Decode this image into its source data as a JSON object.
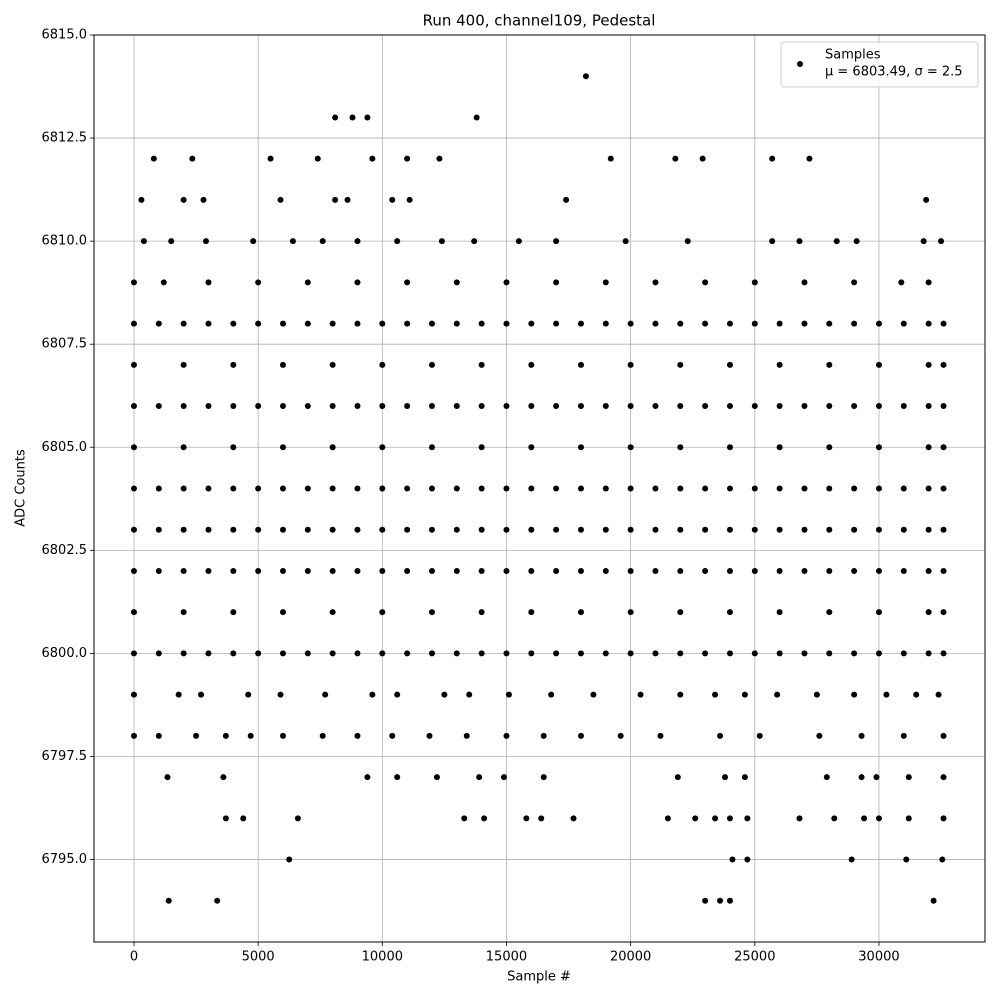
{
  "chart_data": {
    "type": "scatter",
    "title": "Run 400, channel109, Pedestal",
    "x_label": "Sample #",
    "y_label": "ADC Counts",
    "legend_note": "μ = 6803.49, σ = 2.5",
    "legend": "upper right",
    "grid": true,
    "xlim": [
      -1610,
      34270
    ],
    "ylim": [
      6793,
      6815
    ],
    "xticks": [
      0,
      5000,
      10000,
      15000,
      20000,
      25000,
      30000
    ],
    "yticks": [
      {
        "value": 6795,
        "label": "6795.0"
      },
      {
        "value": 6797.5,
        "label": "6797.5"
      },
      {
        "value": 6800,
        "label": "6800.0"
      },
      {
        "value": 6802.5,
        "label": "6802.5"
      },
      {
        "value": 6805,
        "label": "6805.0"
      },
      {
        "value": 6807.5,
        "label": "6807.5"
      },
      {
        "value": 6810,
        "label": "6810.0"
      },
      {
        "value": 6812.5,
        "label": "6812.5"
      },
      {
        "value": 6815,
        "label": "6815.0"
      }
    ],
    "x": [
      0,
      1000,
      2000,
      3000,
      4000,
      5000,
      6000,
      7000,
      8000,
      9000,
      10000,
      11000,
      12000,
      13000,
      14000,
      15000,
      16000,
      17000,
      18000,
      19000,
      20000,
      21000,
      22000,
      23000,
      24000,
      25000,
      26000,
      27000,
      28000,
      29000,
      30000,
      31000,
      32000,
      32600,
      0,
      1000,
      2000,
      3000,
      4000,
      5000,
      6000,
      7000,
      8000,
      9000,
      10000,
      11000,
      12000,
      13000,
      14000,
      15000,
      16000,
      17000,
      18000,
      19000,
      20000,
      21000,
      22000,
      23000,
      24000,
      25000,
      26000,
      27000,
      28000,
      29000,
      30000,
      31000,
      32000,
      32600,
      0,
      1000,
      2000,
      3000,
      4000,
      5000,
      6000,
      7000,
      8000,
      9000,
      10000,
      11000,
      12000,
      13000,
      14000,
      15000,
      16000,
      17000,
      18000,
      19000,
      20000,
      21000,
      22000,
      23000,
      24000,
      25000,
      26000,
      27000,
      28000,
      29000,
      30000,
      31000,
      32000,
      32600,
      0,
      1000,
      2000,
      3000,
      4000,
      5000,
      6000,
      7000,
      8000,
      9000,
      10000,
      11000,
      12000,
      13000,
      14000,
      15000,
      16000,
      17000,
      18000,
      19000,
      20000,
      21000,
      22000,
      23000,
      24000,
      25000,
      26000,
      27000,
      28000,
      29000,
      30000,
      31000,
      32000,
      32600,
      0,
      1000,
      2000,
      3000,
      4000,
      5000,
      6000,
      7000,
      8000,
      9000,
      10000,
      11000,
      12000,
      13000,
      14000,
      15000,
      16000,
      17000,
      18000,
      19000,
      20000,
      21000,
      22000,
      23000,
      24000,
      25000,
      26000,
      27000,
      28000,
      29000,
      30000,
      31000,
      32000,
      32600,
      0,
      1000,
      2000,
      3000,
      4000,
      5000,
      6000,
      7000,
      8000,
      9000,
      10000,
      11000,
      12000,
      13000,
      14000,
      15000,
      16000,
      17000,
      18000,
      19000,
      20000,
      21000,
      22000,
      23000,
      24000,
      25000,
      26000,
      27000,
      28000,
      29000,
      30000,
      31000,
      32000,
      32600,
      0,
      2000,
      4000,
      6000,
      8000,
      10000,
      12000,
      14000,
      16000,
      18000,
      20000,
      22000,
      24000,
      26000,
      28000,
      30000,
      32000,
      32600,
      0,
      2000,
      4000,
      6000,
      8000,
      10000,
      12000,
      14000,
      16000,
      18000,
      20000,
      22000,
      24000,
      26000,
      28000,
      30000,
      32000,
      32600,
      0,
      2000,
      4000,
      6000,
      8000,
      10000,
      12000,
      14000,
      16000,
      18000,
      20000,
      22000,
      24000,
      26000,
      28000,
      30000,
      32000,
      32600,
      400,
      1500,
      2900,
      4800,
      6400,
      7600,
      9000,
      10600,
      12400,
      13700,
      15500,
      17000,
      19800,
      22300,
      25700,
      26800,
      28300,
      29100,
      31800,
      32500,
      0,
      1200,
      3000,
      5000,
      7000,
      9000,
      11000,
      13000,
      15000,
      17000,
      19000,
      21000,
      23000,
      25000,
      27000,
      29000,
      30900,
      32000,
      0,
      1800,
      2700,
      4600,
      5900,
      7700,
      9600,
      10600,
      12500,
      13500,
      15100,
      16800,
      18500,
      20400,
      22000,
      23400,
      24600,
      25900,
      27500,
      29000,
      30300,
      31500,
      32400,
      0,
      1000,
      2500,
      3700,
      4700,
      6000,
      7600,
      9000,
      10400,
      11900,
      13400,
      15000,
      16500,
      18000,
      19600,
      21200,
      23600,
      25200,
      27600,
      29300,
      31000,
      32600,
      18200,
      8100,
      8800,
      9400,
      13800,
      800,
      2350,
      5500,
      7400,
      9600,
      11000,
      12300,
      19200,
      21800,
      22900,
      25700,
      27200,
      300,
      2000,
      2800,
      5900,
      8100,
      8600,
      10400,
      11100,
      17400,
      31900,
      1350,
      3600,
      9400,
      10600,
      12200,
      13900,
      14900,
      16500,
      21900,
      23800,
      24600,
      27900,
      29300,
      29900,
      31200,
      32600,
      3700,
      4400,
      6600,
      13300,
      14100,
      15800,
      16400,
      17700,
      21500,
      22600,
      23400,
      24000,
      24700,
      26800,
      28200,
      29400,
      30000,
      31200,
      32600,
      6250,
      24100,
      24700,
      28900,
      31100,
      32550,
      1400,
      3350,
      23000,
      23600,
      24000,
      32200
    ],
    "series": [
      {
        "name": "Samples",
        "color": "#000000",
        "values": [
          6802,
          6802,
          6802,
          6802,
          6802,
          6802,
          6802,
          6802,
          6802,
          6802,
          6802,
          6802,
          6802,
          6802,
          6802,
          6802,
          6802,
          6802,
          6802,
          6802,
          6802,
          6802,
          6802,
          6802,
          6802,
          6802,
          6802,
          6802,
          6802,
          6802,
          6802,
          6802,
          6802,
          6802,
          6803,
          6803,
          6803,
          6803,
          6803,
          6803,
          6803,
          6803,
          6803,
          6803,
          6803,
          6803,
          6803,
          6803,
          6803,
          6803,
          6803,
          6803,
          6803,
          6803,
          6803,
          6803,
          6803,
          6803,
          6803,
          6803,
          6803,
          6803,
          6803,
          6803,
          6803,
          6803,
          6803,
          6803,
          6804,
          6804,
          6804,
          6804,
          6804,
          6804,
          6804,
          6804,
          6804,
          6804,
          6804,
          6804,
          6804,
          6804,
          6804,
          6804,
          6804,
          6804,
          6804,
          6804,
          6804,
          6804,
          6804,
          6804,
          6804,
          6804,
          6804,
          6804,
          6804,
          6804,
          6804,
          6804,
          6804,
          6804,
          6806,
          6806,
          6806,
          6806,
          6806,
          6806,
          6806,
          6806,
          6806,
          6806,
          6806,
          6806,
          6806,
          6806,
          6806,
          6806,
          6806,
          6806,
          6806,
          6806,
          6806,
          6806,
          6806,
          6806,
          6806,
          6806,
          6806,
          6806,
          6806,
          6806,
          6806,
          6806,
          6806,
          6806,
          6800,
          6800,
          6800,
          6800,
          6800,
          6800,
          6800,
          6800,
          6800,
          6800,
          6800,
          6800,
          6800,
          6800,
          6800,
          6800,
          6800,
          6800,
          6800,
          6800,
          6800,
          6800,
          6800,
          6800,
          6800,
          6800,
          6800,
          6800,
          6800,
          6800,
          6800,
          6800,
          6800,
          6800,
          6808,
          6808,
          6808,
          6808,
          6808,
          6808,
          6808,
          6808,
          6808,
          6808,
          6808,
          6808,
          6808,
          6808,
          6808,
          6808,
          6808,
          6808,
          6808,
          6808,
          6808,
          6808,
          6808,
          6808,
          6808,
          6808,
          6808,
          6808,
          6808,
          6808,
          6808,
          6808,
          6808,
          6808,
          6805,
          6805,
          6805,
          6805,
          6805,
          6805,
          6805,
          6805,
          6805,
          6805,
          6805,
          6805,
          6805,
          6805,
          6805,
          6805,
          6805,
          6805,
          6801,
          6801,
          6801,
          6801,
          6801,
          6801,
          6801,
          6801,
          6801,
          6801,
          6801,
          6801,
          6801,
          6801,
          6801,
          6801,
          6801,
          6801,
          6807,
          6807,
          6807,
          6807,
          6807,
          6807,
          6807,
          6807,
          6807,
          6807,
          6807,
          6807,
          6807,
          6807,
          6807,
          6807,
          6807,
          6807,
          6810,
          6810,
          6810,
          6810,
          6810,
          6810,
          6810,
          6810,
          6810,
          6810,
          6810,
          6810,
          6810,
          6810,
          6810,
          6810,
          6810,
          6810,
          6810,
          6810,
          6809,
          6809,
          6809,
          6809,
          6809,
          6809,
          6809,
          6809,
          6809,
          6809,
          6809,
          6809,
          6809,
          6809,
          6809,
          6809,
          6809,
          6809,
          6799,
          6799,
          6799,
          6799,
          6799,
          6799,
          6799,
          6799,
          6799,
          6799,
          6799,
          6799,
          6799,
          6799,
          6799,
          6799,
          6799,
          6799,
          6799,
          6799,
          6799,
          6799,
          6799,
          6798,
          6798,
          6798,
          6798,
          6798,
          6798,
          6798,
          6798,
          6798,
          6798,
          6798,
          6798,
          6798,
          6798,
          6798,
          6798,
          6798,
          6798,
          6798,
          6798,
          6798,
          6798,
          6814,
          6813,
          6813,
          6813,
          6813,
          6812,
          6812,
          6812,
          6812,
          6812,
          6812,
          6812,
          6812,
          6812,
          6812,
          6812,
          6812,
          6811,
          6811,
          6811,
          6811,
          6811,
          6811,
          6811,
          6811,
          6811,
          6811,
          6797,
          6797,
          6797,
          6797,
          6797,
          6797,
          6797,
          6797,
          6797,
          6797,
          6797,
          6797,
          6797,
          6797,
          6797,
          6797,
          6796,
          6796,
          6796,
          6796,
          6796,
          6796,
          6796,
          6796,
          6796,
          6796,
          6796,
          6796,
          6796,
          6796,
          6796,
          6796,
          6796,
          6796,
          6796,
          6795,
          6795,
          6795,
          6795,
          6795,
          6795,
          6794,
          6794,
          6794,
          6794,
          6794,
          6794
        ]
      }
    ]
  }
}
